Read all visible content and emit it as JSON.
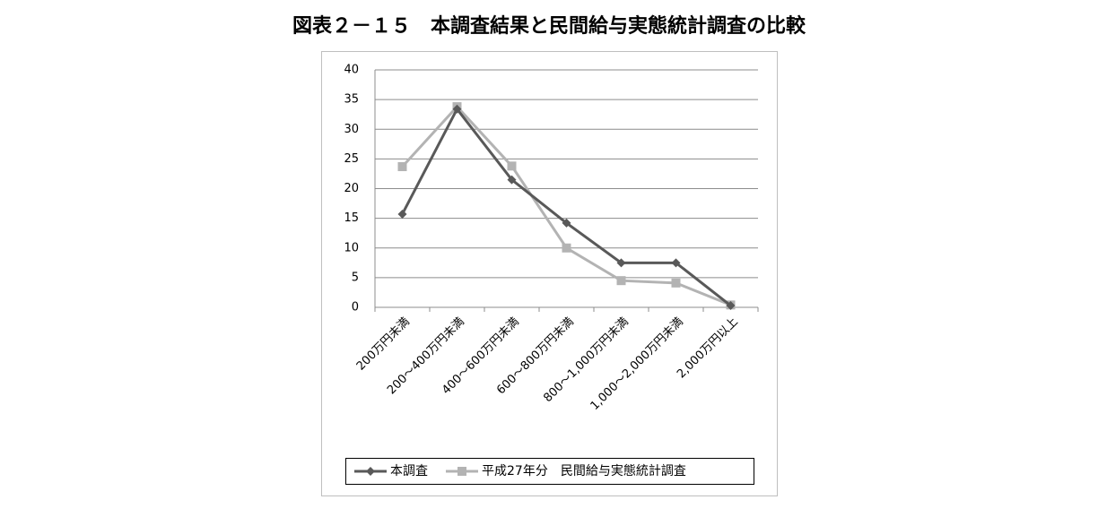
{
  "chart_data": {
    "type": "line",
    "title": "図表２－１５　本調査結果と民間給与実態統計調査の比較",
    "categories": [
      "200万円未満",
      "200～400万円未満",
      "400～600万円未満",
      "600～800万円未満",
      "800～1,000万円未満",
      "1,000～2,000万円未満",
      "2,000万円以上"
    ],
    "series": [
      {
        "name": "本調査",
        "color": "#595959",
        "marker": "diamond",
        "values": [
          15.7,
          33.4,
          21.5,
          14.2,
          7.5,
          7.5,
          0.3
        ]
      },
      {
        "name": "平成27年分　民間給与実態統計調査",
        "color": "#b3b3b3",
        "marker": "square",
        "values": [
          23.7,
          33.8,
          23.8,
          10.0,
          4.5,
          4.1,
          0.4
        ]
      }
    ],
    "ylim": [
      0,
      40
    ],
    "yticks": [
      0,
      5,
      10,
      15,
      20,
      25,
      30,
      35,
      40
    ],
    "grid": true,
    "legend": "bottom"
  }
}
